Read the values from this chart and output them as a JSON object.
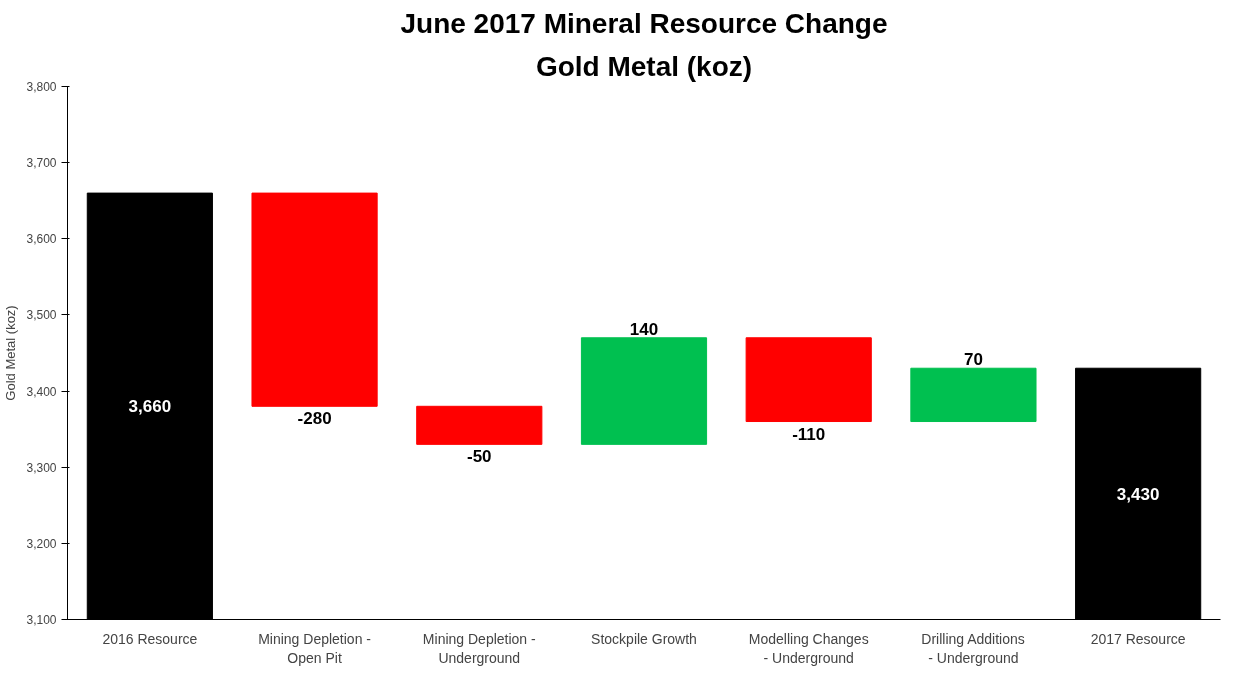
{
  "chart_data": {
    "type": "bar",
    "title": "June 2017 Mineral Resource Change",
    "subtitle": "Gold Metal (koz)",
    "ylabel": "Gold Metal (koz)",
    "categories": [
      "2016 Resource",
      "Mining Depletion - Open Pit",
      "Mining Depletion - Underground",
      "Stockpile Growth",
      "Modelling Changes - Underground",
      "Drilling Additions - Underground",
      "2017 Resource"
    ],
    "values": [
      3660,
      -280,
      -50,
      140,
      -110,
      70,
      3430
    ],
    "base": [
      0,
      3660,
      3380,
      3330,
      3470,
      3360,
      0
    ],
    "colors": [
      "#000000",
      "#ff0000",
      "#ff0000",
      "#00c050",
      "#ff0000",
      "#00c050",
      "#000000"
    ],
    "value_labels": [
      "3,660",
      "-280",
      "-50",
      "140",
      "-110",
      "70",
      "3,430"
    ],
    "ylim": [
      3100,
      3800
    ],
    "yticks": [
      {
        "value": 3100,
        "label": "3,100"
      },
      {
        "value": 3200,
        "label": "3,200"
      },
      {
        "value": 3300,
        "label": "3,300"
      },
      {
        "value": 3400,
        "label": "3,400"
      },
      {
        "value": 3500,
        "label": "3,500"
      },
      {
        "value": 3600,
        "label": "3,600"
      },
      {
        "value": 3700,
        "label": "3,700"
      },
      {
        "value": 3800,
        "label": "3,800"
      }
    ],
    "grid": false
  }
}
